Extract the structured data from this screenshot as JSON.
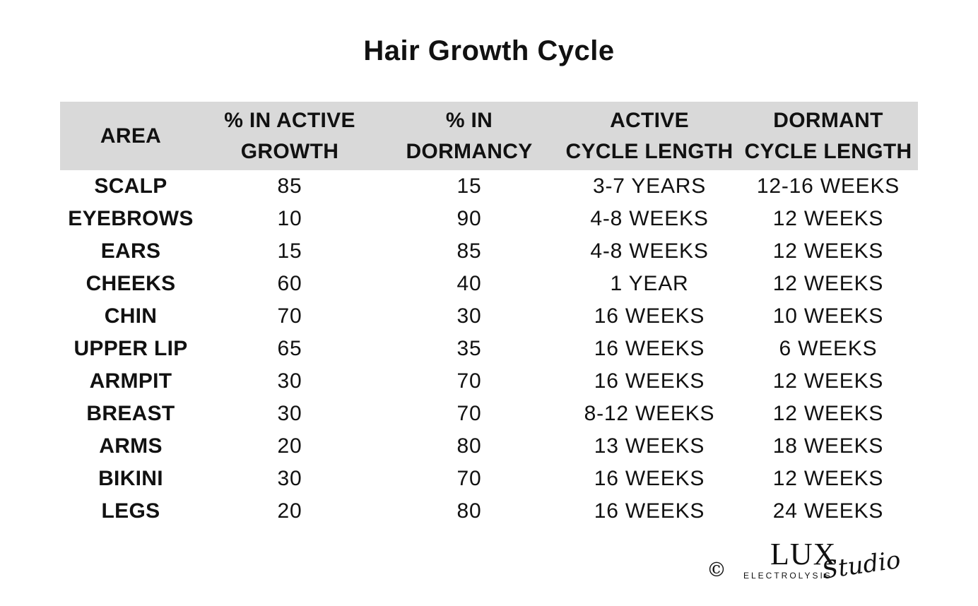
{
  "title": "Hair Growth Cycle",
  "table": {
    "headers": [
      {
        "line1": "AREA",
        "line2": ""
      },
      {
        "line1": "% IN ACTIVE",
        "line2": "GROWTH"
      },
      {
        "line1": "% IN",
        "line2": "DORMANCY"
      },
      {
        "line1": "ACTIVE",
        "line2": "CYCLE LENGTH"
      },
      {
        "line1": "DORMANT",
        "line2": "CYCLE LENGTH"
      }
    ],
    "rows": [
      [
        "SCALP",
        "85",
        "15",
        "3-7 YEARS",
        "12-16 WEEKS"
      ],
      [
        "EYEBROWS",
        "10",
        "90",
        "4-8 WEEKS",
        "12 WEEKS"
      ],
      [
        "EARS",
        "15",
        "85",
        "4-8 WEEKS",
        "12 WEEKS"
      ],
      [
        "CHEEKS",
        "60",
        "40",
        "1 YEAR",
        "12 WEEKS"
      ],
      [
        "CHIN",
        "70",
        "30",
        "16 WEEKS",
        "10 WEEKS"
      ],
      [
        "UPPER LIP",
        "65",
        "35",
        "16 WEEKS",
        "6 WEEKS"
      ],
      [
        "ARMPIT",
        "30",
        "70",
        "16 WEEKS",
        "12 WEEKS"
      ],
      [
        "BREAST",
        "30",
        "70",
        "8-12 WEEKS",
        "12 WEEKS"
      ],
      [
        "ARMS",
        "20",
        "80",
        "13 WEEKS",
        "18 WEEKS"
      ],
      [
        "BIKINI",
        "30",
        "70",
        "16 WEEKS",
        "12 WEEKS"
      ],
      [
        "LEGS",
        "20",
        "80",
        "16 WEEKS",
        "24 WEEKS"
      ]
    ]
  },
  "footer": {
    "copyright_symbol": "©",
    "logo_main": "LUX",
    "logo_sub": "ELECTROLYSIS",
    "logo_script": "Studio"
  },
  "colors": {
    "header_background": "#d9d9d9",
    "text": "#111111",
    "page_background": "#ffffff"
  }
}
